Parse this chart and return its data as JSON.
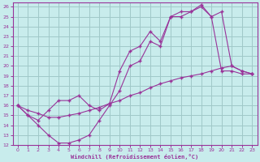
{
  "xlabel": "Windchill (Refroidissement éolien,°C)",
  "bg_color": "#c8ecec",
  "grid_color": "#a0c8c8",
  "line_color": "#993399",
  "xlim": [
    -0.5,
    23.5
  ],
  "ylim": [
    12,
    26.4
  ],
  "xticks": [
    0,
    1,
    2,
    3,
    4,
    5,
    6,
    7,
    8,
    9,
    10,
    11,
    12,
    13,
    14,
    15,
    16,
    17,
    18,
    19,
    20,
    21,
    22,
    23
  ],
  "yticks": [
    12,
    13,
    14,
    15,
    16,
    17,
    18,
    19,
    20,
    21,
    22,
    23,
    24,
    25,
    26
  ],
  "line1_x": [
    0,
    1,
    2,
    3,
    4,
    5,
    6,
    7,
    8,
    9,
    10,
    11,
    12,
    13,
    14,
    15,
    16,
    17,
    18,
    19,
    20,
    21,
    22,
    23
  ],
  "line1_y": [
    16.0,
    15.0,
    14.0,
    13.0,
    12.2,
    12.2,
    12.5,
    13.0,
    14.5,
    16.0,
    17.5,
    20.0,
    20.5,
    22.5,
    22.0,
    25.0,
    25.5,
    25.5,
    26.0,
    25.0,
    25.5,
    20.0,
    19.5,
    19.2
  ],
  "line2_x": [
    0,
    1,
    2,
    3,
    4,
    5,
    6,
    7,
    8,
    9,
    10,
    11,
    12,
    13,
    14,
    15,
    16,
    17,
    18,
    19,
    20,
    21,
    22,
    23
  ],
  "line2_y": [
    16.0,
    15.0,
    14.5,
    15.5,
    16.5,
    16.5,
    17.0,
    16.0,
    15.5,
    16.2,
    19.5,
    21.5,
    22.0,
    23.5,
    22.5,
    25.0,
    25.0,
    25.5,
    26.2,
    25.0,
    19.5,
    19.5,
    19.2,
    19.2
  ],
  "line3_x": [
    0,
    1,
    2,
    3,
    4,
    5,
    6,
    7,
    8,
    9,
    10,
    11,
    12,
    13,
    14,
    15,
    16,
    17,
    18,
    19,
    20,
    21,
    22,
    23
  ],
  "line3_y": [
    16.0,
    15.5,
    15.2,
    14.8,
    14.8,
    15.0,
    15.2,
    15.5,
    15.8,
    16.2,
    16.5,
    17.0,
    17.3,
    17.8,
    18.2,
    18.5,
    18.8,
    19.0,
    19.2,
    19.5,
    19.8,
    20.0,
    19.5,
    19.2
  ]
}
